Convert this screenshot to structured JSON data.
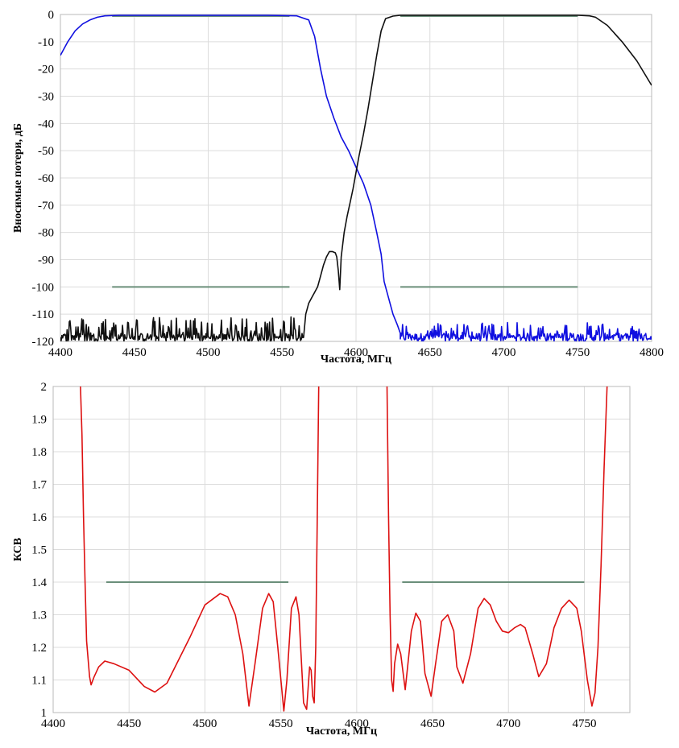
{
  "chart_data": [
    {
      "type": "line",
      "xlabel": "Частота, МГц",
      "ylabel": "Вносимые потери, дБ",
      "xlim": [
        4400,
        4800
      ],
      "ylim": [
        -120,
        0
      ],
      "xticks": [
        "4400",
        "4450",
        "4500",
        "4550",
        "4600",
        "4650",
        "4700",
        "4750",
        "4800"
      ],
      "yticks": [
        "0",
        "-10",
        "-20",
        "-30",
        "-40",
        "-50",
        "-60",
        "-70",
        "-80",
        "-90",
        "-100",
        "-110",
        "-120"
      ],
      "grid": true,
      "colors": {
        "rx": "#1010e0",
        "tx": "#101010",
        "mask": "#6a8f7a"
      },
      "series": [
        {
          "color": "#1010e0",
          "x": [
            4400,
            4405,
            4410,
            4415,
            4420,
            4425,
            4430,
            4440,
            4460,
            4500,
            4540,
            4560,
            4568,
            4572,
            4576,
            4580,
            4585,
            4590,
            4595,
            4600,
            4605,
            4610,
            4614,
            4617,
            4619,
            4620,
            4622,
            4625,
            4628,
            4630
          ],
          "y": [
            -15,
            -10,
            -6,
            -3.5,
            -2,
            -1,
            -0.5,
            -0.3,
            -0.3,
            -0.3,
            -0.3,
            -0.5,
            -2,
            -8,
            -20,
            -30,
            -38,
            -45,
            -50,
            -56,
            -62,
            -70,
            -80,
            -88,
            -98,
            -100,
            -104,
            -110,
            -114,
            -117
          ],
          "noise": {
            "xmin": 4630,
            "xmax": 4800,
            "base": -118,
            "amp": 7
          }
        },
        {
          "color": "#101010",
          "x": [
            4400,
            4555,
            4560,
            4563,
            4566,
            4568,
            4570,
            4572,
            4574,
            4576,
            4578,
            4580,
            4582,
            4584,
            4586,
            4587,
            4588,
            4589,
            4590,
            4592,
            4594,
            4596,
            4598,
            4600,
            4602,
            4605,
            4608,
            4611,
            4614,
            4617,
            4620,
            4625,
            4630,
            4650,
            4700,
            4750,
            4758,
            4762,
            4770,
            4780,
            4790,
            4800
          ],
          "y": [
            -118,
            -118,
            -117,
            -114,
            -110,
            -106,
            -104,
            -102,
            -100,
            -96,
            -92,
            -89,
            -87,
            -87,
            -87.5,
            -89,
            -94,
            -101,
            -89,
            -80,
            -74,
            -69,
            -64,
            -58,
            -52,
            -44,
            -35,
            -25,
            -15,
            -6,
            -1.5,
            -0.6,
            -0.3,
            -0.3,
            -0.3,
            -0.3,
            -0.5,
            -1,
            -4,
            -10,
            -17,
            -26
          ],
          "noise": {
            "xmin": 4400,
            "xmax": 4565,
            "base": -118,
            "amp": 9
          }
        }
      ],
      "mask_lines": [
        {
          "x": [
            4435,
            4555
          ],
          "y": -0.6
        },
        {
          "x": [
            4630,
            4750
          ],
          "y": -0.6
        },
        {
          "x": [
            4435,
            4555
          ],
          "y": -100
        },
        {
          "x": [
            4630,
            4750
          ],
          "y": -100
        }
      ]
    },
    {
      "type": "line",
      "xlabel": "Частота, МГц",
      "ylabel": "КСВ",
      "xlim": [
        4400,
        4780
      ],
      "ylim": [
        1,
        2
      ],
      "xticks": [
        "4400",
        "4450",
        "4500",
        "4550",
        "4600",
        "4650",
        "4700",
        "4750"
      ],
      "yticks": [
        "2",
        "1.9",
        "1.8",
        "1.7",
        "1.6",
        "1.5",
        "1.4",
        "1.3",
        "1.2",
        "1.1",
        "1"
      ],
      "grid": true,
      "colors": {
        "vswr": "#dd1111",
        "mask": "#6a8f7a"
      },
      "series": [
        {
          "color": "#dd1111",
          "segments": [
            {
              "x": [
                4418,
                4419,
                4420,
                4421,
                4422,
                4424,
                4425,
                4427,
                4430,
                4434,
                4440,
                4450,
                4460,
                4467,
                4475,
                4490,
                4500,
                4510,
                4515,
                4520,
                4525,
                4529,
                4533,
                4538,
                4542,
                4545,
                4548,
                4552,
                4554,
                4557,
                4560,
                4562,
                4565,
                4567,
                4569,
                4570,
                4571,
                4572,
                4573,
                4574,
                4575
              ],
              "y": [
                2.0,
                1.85,
                1.6,
                1.4,
                1.22,
                1.11,
                1.085,
                1.11,
                1.14,
                1.158,
                1.15,
                1.13,
                1.08,
                1.063,
                1.09,
                1.23,
                1.33,
                1.365,
                1.355,
                1.3,
                1.18,
                1.02,
                1.15,
                1.32,
                1.365,
                1.34,
                1.2,
                1.005,
                1.1,
                1.32,
                1.355,
                1.3,
                1.03,
                1.01,
                1.14,
                1.13,
                1.05,
                1.03,
                1.2,
                1.6,
                2.0
              ]
            },
            {
              "x": [
                4620,
                4621,
                4622,
                4623,
                4624,
                4625,
                4627,
                4629,
                4632,
                4636,
                4639,
                4642,
                4645,
                4649,
                4652,
                4656,
                4660,
                4664,
                4666,
                4670,
                4675,
                4680,
                4684,
                4688,
                4692,
                4696,
                4700,
                4704,
                4708,
                4711,
                4716,
                4720,
                4725,
                4730,
                4735,
                4740,
                4745,
                4748,
                4752,
                4755,
                4757,
                4759,
                4761,
                4763,
                4765
              ],
              "y": [
                2.0,
                1.6,
                1.3,
                1.1,
                1.065,
                1.15,
                1.21,
                1.18,
                1.07,
                1.25,
                1.305,
                1.28,
                1.12,
                1.05,
                1.15,
                1.28,
                1.3,
                1.25,
                1.14,
                1.09,
                1.18,
                1.32,
                1.35,
                1.33,
                1.28,
                1.25,
                1.245,
                1.26,
                1.27,
                1.26,
                1.18,
                1.11,
                1.15,
                1.26,
                1.32,
                1.345,
                1.32,
                1.25,
                1.1,
                1.02,
                1.06,
                1.2,
                1.45,
                1.75,
                2.0
              ]
            }
          ]
        }
      ],
      "mask_lines": [
        {
          "x": [
            4435,
            4555
          ],
          "y": 1.4
        },
        {
          "x": [
            4630,
            4750
          ],
          "y": 1.4
        }
      ]
    }
  ]
}
